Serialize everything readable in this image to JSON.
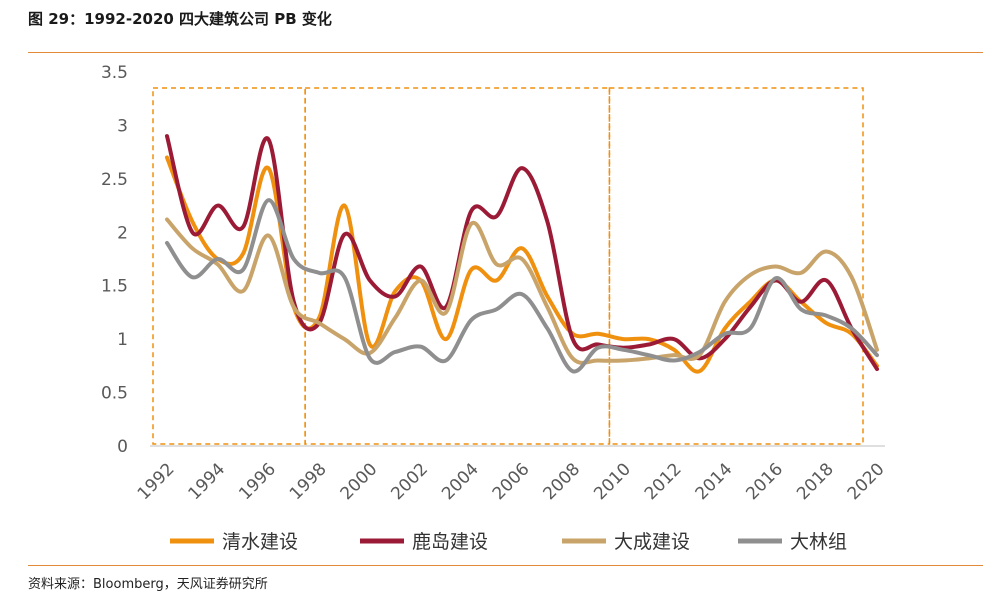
{
  "header": {
    "title": "图 29：1992-2020 四大建筑公司 PB 变化"
  },
  "footer": {
    "source": "资料来源：Bloomberg，天风证券研究所"
  },
  "chart_data": {
    "type": "line",
    "title": "",
    "xlabel": "",
    "ylabel": "",
    "xlim": [
      1992,
      2020
    ],
    "ylim": [
      0,
      3.5
    ],
    "y_ticks": [
      "0",
      "0.5",
      "1",
      "1.5",
      "2",
      "2.5",
      "3",
      "3.5"
    ],
    "x_ticks": [
      "1992",
      "1994",
      "1996",
      "1998",
      "2000",
      "2002",
      "2004",
      "2006",
      "2008",
      "2010",
      "2012",
      "2014",
      "2016",
      "2018",
      "2020"
    ],
    "grid": false,
    "legend_position": "bottom",
    "annotation_boxes": [
      {
        "from": 1992,
        "to": 1998
      },
      {
        "from": 1998,
        "to": 2010
      },
      {
        "from": 2010,
        "to": 2020
      }
    ],
    "x": [
      1992,
      1993,
      1994,
      1995,
      1996,
      1997,
      1998,
      1999,
      2000,
      2001,
      2002,
      2003,
      2004,
      2005,
      2006,
      2007,
      2008,
      2009,
      2010,
      2011,
      2012,
      2013,
      2014,
      2015,
      2016,
      2017,
      2018,
      2019,
      2020
    ],
    "series": [
      {
        "name": "清水建设",
        "color": "#f0900f",
        "values": [
          2.7,
          2.1,
          1.75,
          1.8,
          2.6,
          1.3,
          1.2,
          2.25,
          0.95,
          1.45,
          1.55,
          1.0,
          1.65,
          1.55,
          1.85,
          1.4,
          1.05,
          1.05,
          1.0,
          1.0,
          0.9,
          0.7,
          1.1,
          1.35,
          1.55,
          1.35,
          1.15,
          1.05,
          0.75
        ]
      },
      {
        "name": "鹿岛建设",
        "color": "#9b1b36",
        "values": [
          2.9,
          2.0,
          2.25,
          2.05,
          2.87,
          1.35,
          1.15,
          1.98,
          1.55,
          1.4,
          1.68,
          1.3,
          2.2,
          2.15,
          2.6,
          2.1,
          1.0,
          0.95,
          0.92,
          0.95,
          1.0,
          0.82,
          1.0,
          1.3,
          1.55,
          1.35,
          1.55,
          1.1,
          0.72
        ]
      },
      {
        "name": "大成建设",
        "color": "#c9a46a",
        "values": [
          2.12,
          1.85,
          1.7,
          1.45,
          1.97,
          1.3,
          1.15,
          1.0,
          0.87,
          1.2,
          1.55,
          1.25,
          2.08,
          1.7,
          1.75,
          1.3,
          0.82,
          0.8,
          0.8,
          0.82,
          0.85,
          0.85,
          1.35,
          1.6,
          1.68,
          1.62,
          1.82,
          1.58,
          0.9
        ]
      },
      {
        "name": "大林组",
        "color": "#8f8f8f",
        "values": [
          1.9,
          1.58,
          1.75,
          1.65,
          2.3,
          1.75,
          1.62,
          1.58,
          0.82,
          0.88,
          0.93,
          0.8,
          1.18,
          1.28,
          1.42,
          1.1,
          0.7,
          0.92,
          0.9,
          0.85,
          0.8,
          0.88,
          1.05,
          1.1,
          1.57,
          1.28,
          1.22,
          1.1,
          0.85
        ]
      }
    ]
  }
}
